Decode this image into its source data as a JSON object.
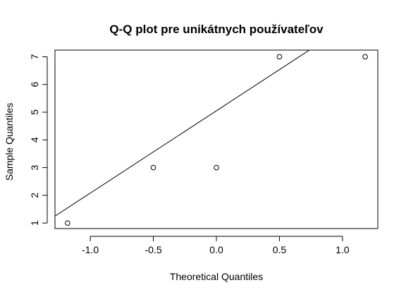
{
  "chart_data": {
    "type": "scatter",
    "title": "Q-Q plot pre unikátnych používateľov",
    "xlabel": "Theoretical Quantiles",
    "ylabel": "Sample Quantiles",
    "xlim": [
      -1.28,
      1.28
    ],
    "ylim": [
      0.8,
      7.24
    ],
    "x_ticks": [
      -1.0,
      -0.5,
      0.0,
      0.5,
      1.0
    ],
    "x_tick_labels": [
      "-1.0",
      "-0.5",
      "0.0",
      "0.5",
      "1.0"
    ],
    "y_ticks": [
      1,
      2,
      3,
      4,
      5,
      6,
      7
    ],
    "y_tick_labels": [
      "1",
      "2",
      "3",
      "4",
      "5",
      "6",
      "7"
    ],
    "points": [
      {
        "x": -1.18,
        "y": 1
      },
      {
        "x": -0.5,
        "y": 3
      },
      {
        "x": 0.0,
        "y": 3
      },
      {
        "x": 0.5,
        "y": 7
      },
      {
        "x": 1.18,
        "y": 7
      }
    ],
    "reference_line": {
      "intercept": 5.05,
      "slope": 2.97
    },
    "grid": false,
    "legend": "none",
    "colors": {
      "foreground": "#000000",
      "background": "#ffffff"
    }
  }
}
